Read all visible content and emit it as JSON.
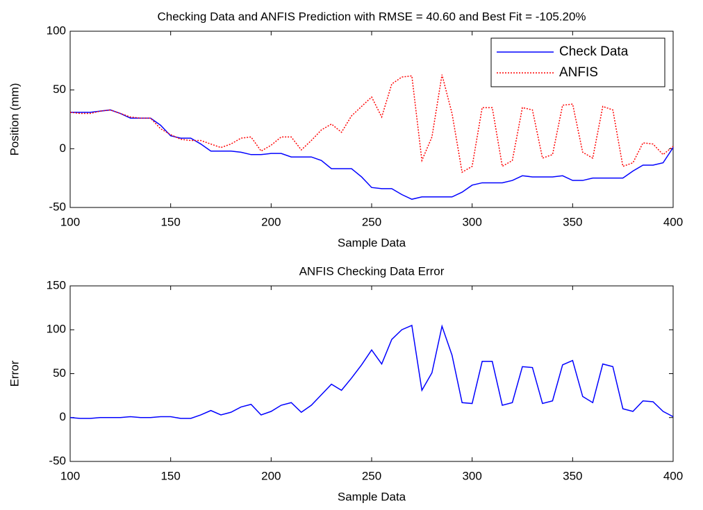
{
  "chart_data": [
    {
      "type": "line",
      "title": "Checking Data and ANFIS Prediction with RMSE = 40.60 and Best Fit = -105.20%",
      "x_label": "Sample Data",
      "y_label": "Position (mm)",
      "xlim": [
        100,
        400
      ],
      "xticks": [
        100,
        150,
        200,
        250,
        300,
        350,
        400
      ],
      "ylim": [
        -50,
        100
      ],
      "yticks": [
        -50,
        0,
        50,
        100
      ],
      "legend": "upper-right",
      "x": [
        100,
        105,
        110,
        115,
        120,
        125,
        130,
        135,
        140,
        145,
        150,
        155,
        160,
        165,
        170,
        175,
        180,
        185,
        190,
        195,
        200,
        205,
        210,
        215,
        220,
        225,
        230,
        235,
        240,
        245,
        250,
        255,
        260,
        265,
        270,
        275,
        280,
        285,
        290,
        295,
        300,
        305,
        310,
        315,
        320,
        325,
        330,
        335,
        340,
        345,
        350,
        355,
        360,
        365,
        370,
        375,
        380,
        385,
        390,
        395,
        400
      ],
      "series": [
        {
          "name": "Check Data",
          "color": "#0000ff",
          "dash": "solid",
          "values": [
            31,
            31,
            31,
            32,
            33,
            30,
            26,
            26,
            26,
            20,
            11,
            9,
            9,
            4,
            -2,
            -2,
            -2,
            -3,
            -5,
            -5,
            -4,
            -4,
            -7,
            -7,
            -7,
            -10,
            -17,
            -17,
            -17,
            -24,
            -33,
            -34,
            -34,
            -39,
            -43,
            -41,
            -41,
            -41,
            -41,
            -37,
            -31,
            -29,
            -29,
            -29,
            -27,
            -23,
            -24,
            -24,
            -24,
            -23,
            -27,
            -27,
            -25,
            -25,
            -25,
            -25,
            -19,
            -14,
            -14,
            -12,
            1
          ]
        },
        {
          "name": "ANFIS",
          "color": "#ff0000",
          "dash": "dotted",
          "values": [
            31,
            30,
            30,
            32,
            33,
            30,
            27,
            26,
            26,
            17,
            12,
            8,
            7,
            7,
            4,
            1,
            4,
            9,
            10,
            -2,
            3,
            10,
            10,
            -1,
            7,
            16,
            21,
            14,
            28,
            36,
            44,
            27,
            55,
            61,
            62,
            -10,
            10,
            63,
            30,
            -20,
            -15,
            35,
            35,
            -15,
            -10,
            35,
            33,
            -8,
            -5,
            37,
            38,
            -3,
            -8,
            36,
            33,
            -15,
            -12,
            5,
            4,
            -5,
            2
          ]
        }
      ]
    },
    {
      "type": "line",
      "title": "ANFIS Checking Data Error",
      "x_label": "Sample Data",
      "y_label": "Error",
      "xlim": [
        100,
        400
      ],
      "xticks": [
        100,
        150,
        200,
        250,
        300,
        350,
        400
      ],
      "ylim": [
        -50,
        150
      ],
      "yticks": [
        -50,
        0,
        50,
        100,
        150
      ],
      "x": [
        100,
        105,
        110,
        115,
        120,
        125,
        130,
        135,
        140,
        145,
        150,
        155,
        160,
        165,
        170,
        175,
        180,
        185,
        190,
        195,
        200,
        205,
        210,
        215,
        220,
        225,
        230,
        235,
        240,
        245,
        250,
        255,
        260,
        265,
        270,
        275,
        280,
        285,
        290,
        295,
        300,
        305,
        310,
        315,
        320,
        325,
        330,
        335,
        340,
        345,
        350,
        355,
        360,
        365,
        370,
        375,
        380,
        385,
        390,
        395,
        400
      ],
      "series": [
        {
          "color": "#0000ff",
          "dash": "solid",
          "values": [
            0,
            -1,
            -1,
            0,
            0,
            0,
            1,
            0,
            0,
            1,
            1,
            -1,
            -1,
            3,
            8,
            3,
            6,
            12,
            15,
            3,
            7,
            14,
            17,
            6,
            14,
            26,
            38,
            31,
            45,
            60,
            77,
            61,
            89,
            100,
            105,
            31,
            51,
            104,
            71,
            17,
            16,
            64,
            64,
            14,
            17,
            58,
            57,
            16,
            19,
            60,
            65,
            24,
            17,
            61,
            58,
            10,
            7,
            19,
            18,
            7,
            1
          ]
        }
      ]
    }
  ]
}
